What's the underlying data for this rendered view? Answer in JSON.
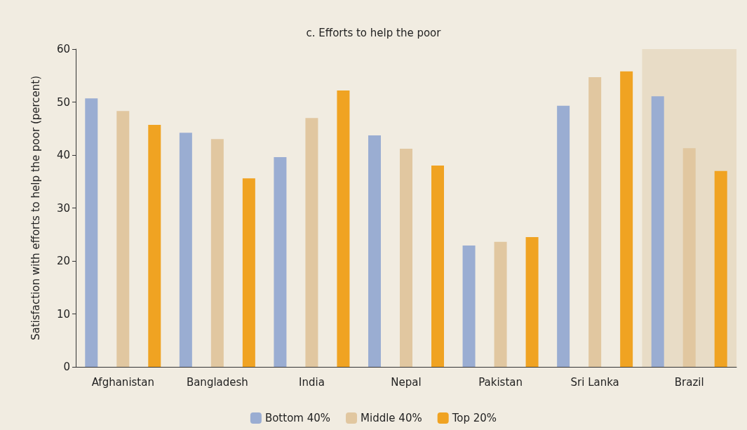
{
  "chart_data": {
    "type": "bar",
    "title": "c. Efforts to help the poor",
    "ylabel": "Satisfaction with efforts to help the poor (percent)",
    "categories": [
      "Afghanistan",
      "Bangladesh",
      "India",
      "Nepal",
      "Pakistan",
      "Sri Lanka",
      "Brazil"
    ],
    "series": [
      {
        "name": "Bottom 40%",
        "color": "#9aadd2",
        "values": [
          50.7,
          44.2,
          39.6,
          43.7,
          22.9,
          49.3,
          51.1
        ]
      },
      {
        "name": "Middle 40%",
        "color": "#e1c7a0",
        "values": [
          48.3,
          43.0,
          47.0,
          41.2,
          23.6,
          54.7,
          41.3
        ]
      },
      {
        "name": "Top 20%",
        "color": "#f0a322",
        "values": [
          45.7,
          35.6,
          52.2,
          38.0,
          24.5,
          55.8,
          37.0
        ]
      }
    ],
    "ylim": [
      0,
      60
    ],
    "yticks": [
      0,
      10,
      20,
      30,
      40,
      50,
      60
    ],
    "bands": [
      {
        "axis": "x",
        "from": "Brazil",
        "to": "Brazil",
        "color": "#e8dcc6"
      }
    ],
    "grid": false,
    "legend": "bottom"
  }
}
